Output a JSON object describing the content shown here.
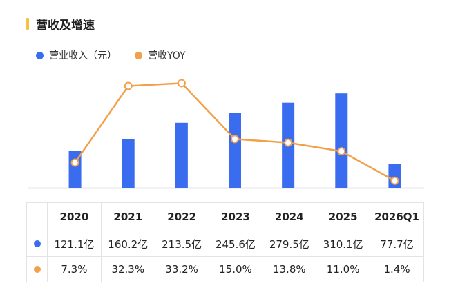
{
  "title": "营收及增速",
  "colors": {
    "bar": "#3a6cf0",
    "line": "#f2a04a",
    "accent": "#f5c242"
  },
  "chart_data": {
    "type": "bar",
    "categories": [
      "2020",
      "2021",
      "2022",
      "2023",
      "2024",
      "2025",
      "2026Q1"
    ],
    "series": [
      {
        "name": "营业收入（元）",
        "type": "bar",
        "values": [
          121.1,
          160.2,
          213.5,
          245.6,
          279.5,
          310.1,
          77.7
        ],
        "labels": [
          "121.1亿",
          "160.2亿",
          "213.5亿",
          "245.6亿",
          "279.5亿",
          "310.1亿",
          "77.7亿"
        ]
      },
      {
        "name": "营收YOY",
        "type": "line",
        "values": [
          7.3,
          32.3,
          33.2,
          15.0,
          13.8,
          11.0,
          1.4
        ],
        "labels": [
          "7.3%",
          "32.3%",
          "33.2%",
          "15.0%",
          "13.8%",
          "11.0%",
          "1.4%"
        ]
      }
    ],
    "legend": "top-left",
    "grid": false
  }
}
